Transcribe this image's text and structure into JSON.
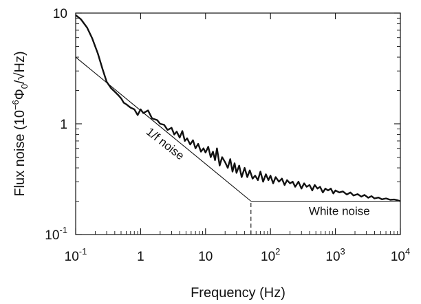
{
  "chart_data": {
    "type": "line",
    "xlabel": "Frequency (Hz)",
    "ylabel": "Flux noise (10",
    "ylabel_exp": "−6",
    "ylabel_unit": "Φ",
    "ylabel_sub": "0",
    "ylabel_sqrt": "/√",
    "ylabel_end": "Hz)",
    "x_scale": "log",
    "y_scale": "log",
    "xlim": [
      0.1,
      10000
    ],
    "ylim": [
      0.1,
      10
    ],
    "grid": false,
    "x_ticks": [
      {
        "value": 0.1,
        "label": "10",
        "exp": "-1"
      },
      {
        "value": 1,
        "label": "1",
        "exp": ""
      },
      {
        "value": 10,
        "label": "10",
        "exp": ""
      },
      {
        "value": 100,
        "label": "10",
        "exp": "2"
      },
      {
        "value": 1000,
        "label": "10",
        "exp": "3"
      },
      {
        "value": 10000,
        "label": "10",
        "exp": "4"
      }
    ],
    "y_ticks": [
      {
        "value": 0.1,
        "label": "10",
        "exp": "-1"
      },
      {
        "value": 1,
        "label": "1",
        "exp": ""
      },
      {
        "value": 10,
        "label": "10",
        "exp": ""
      }
    ],
    "series": [
      {
        "style": "thick",
        "x": [
          0.1,
          0.12,
          0.15,
          0.18,
          0.22,
          0.26,
          0.3,
          0.35,
          0.4,
          0.45,
          0.5,
          0.55,
          0.6,
          0.7,
          0.8,
          0.9,
          1.0,
          1.1,
          1.3,
          1.5,
          1.8,
          2.0,
          2.3,
          2.6,
          3.0,
          3.3,
          3.6,
          4.0,
          4.4,
          4.8,
          5.2,
          5.8,
          6.4,
          7.0,
          7.7,
          8.5,
          9.3,
          10,
          11,
          12,
          13,
          14,
          15,
          16.5,
          18,
          20,
          22,
          24,
          26,
          28,
          30,
          33,
          36,
          40,
          44,
          48,
          53,
          58,
          64,
          70,
          77,
          85,
          93,
          100,
          110,
          120,
          135,
          150,
          165,
          180,
          200,
          220,
          240,
          270,
          300,
          330,
          360,
          400,
          440,
          480,
          530,
          580,
          640,
          700,
          770,
          850,
          930,
          1000,
          1150,
          1300,
          1500,
          1700,
          1900,
          2200,
          2500,
          2800,
          3200,
          3600,
          4000,
          4600,
          5200,
          6000,
          7000,
          8000,
          9000,
          10000
        ],
        "y": [
          9.6,
          8.8,
          7.4,
          5.9,
          4.3,
          3.1,
          2.4,
          2.1,
          1.95,
          1.82,
          1.7,
          1.55,
          1.5,
          1.4,
          1.35,
          1.2,
          1.35,
          1.25,
          1.32,
          1.12,
          1.08,
          1.0,
          0.98,
          0.88,
          0.92,
          0.8,
          0.85,
          0.75,
          0.86,
          0.7,
          0.74,
          0.65,
          0.71,
          0.6,
          0.66,
          0.56,
          0.6,
          0.55,
          0.62,
          0.5,
          0.56,
          0.47,
          0.6,
          0.42,
          0.5,
          0.45,
          0.4,
          0.48,
          0.37,
          0.44,
          0.36,
          0.42,
          0.33,
          0.4,
          0.33,
          0.38,
          0.32,
          0.34,
          0.31,
          0.37,
          0.3,
          0.35,
          0.31,
          0.34,
          0.29,
          0.33,
          0.3,
          0.32,
          0.28,
          0.31,
          0.29,
          0.3,
          0.27,
          0.3,
          0.26,
          0.29,
          0.27,
          0.28,
          0.25,
          0.28,
          0.26,
          0.27,
          0.24,
          0.26,
          0.25,
          0.26,
          0.235,
          0.25,
          0.24,
          0.245,
          0.23,
          0.24,
          0.225,
          0.232,
          0.22,
          0.228,
          0.215,
          0.222,
          0.212,
          0.216,
          0.208,
          0.212,
          0.206,
          0.207,
          0.204,
          0.2
        ]
      },
      {
        "style": "thin",
        "x": [
          0.1,
          50
        ],
        "y": [
          4.0,
          0.2
        ]
      },
      {
        "style": "thin",
        "x": [
          50,
          10000
        ],
        "y": [
          0.2,
          0.2
        ]
      },
      {
        "style": "dashed",
        "x": [
          50,
          50
        ],
        "y": [
          0.1,
          0.2
        ]
      }
    ],
    "annotations": [
      {
        "text": "1/f noise",
        "x": 2.2,
        "y": 0.62,
        "angle": 38
      },
      {
        "text": "White noise",
        "x": 1150,
        "y": 0.15,
        "angle": 0
      }
    ]
  }
}
